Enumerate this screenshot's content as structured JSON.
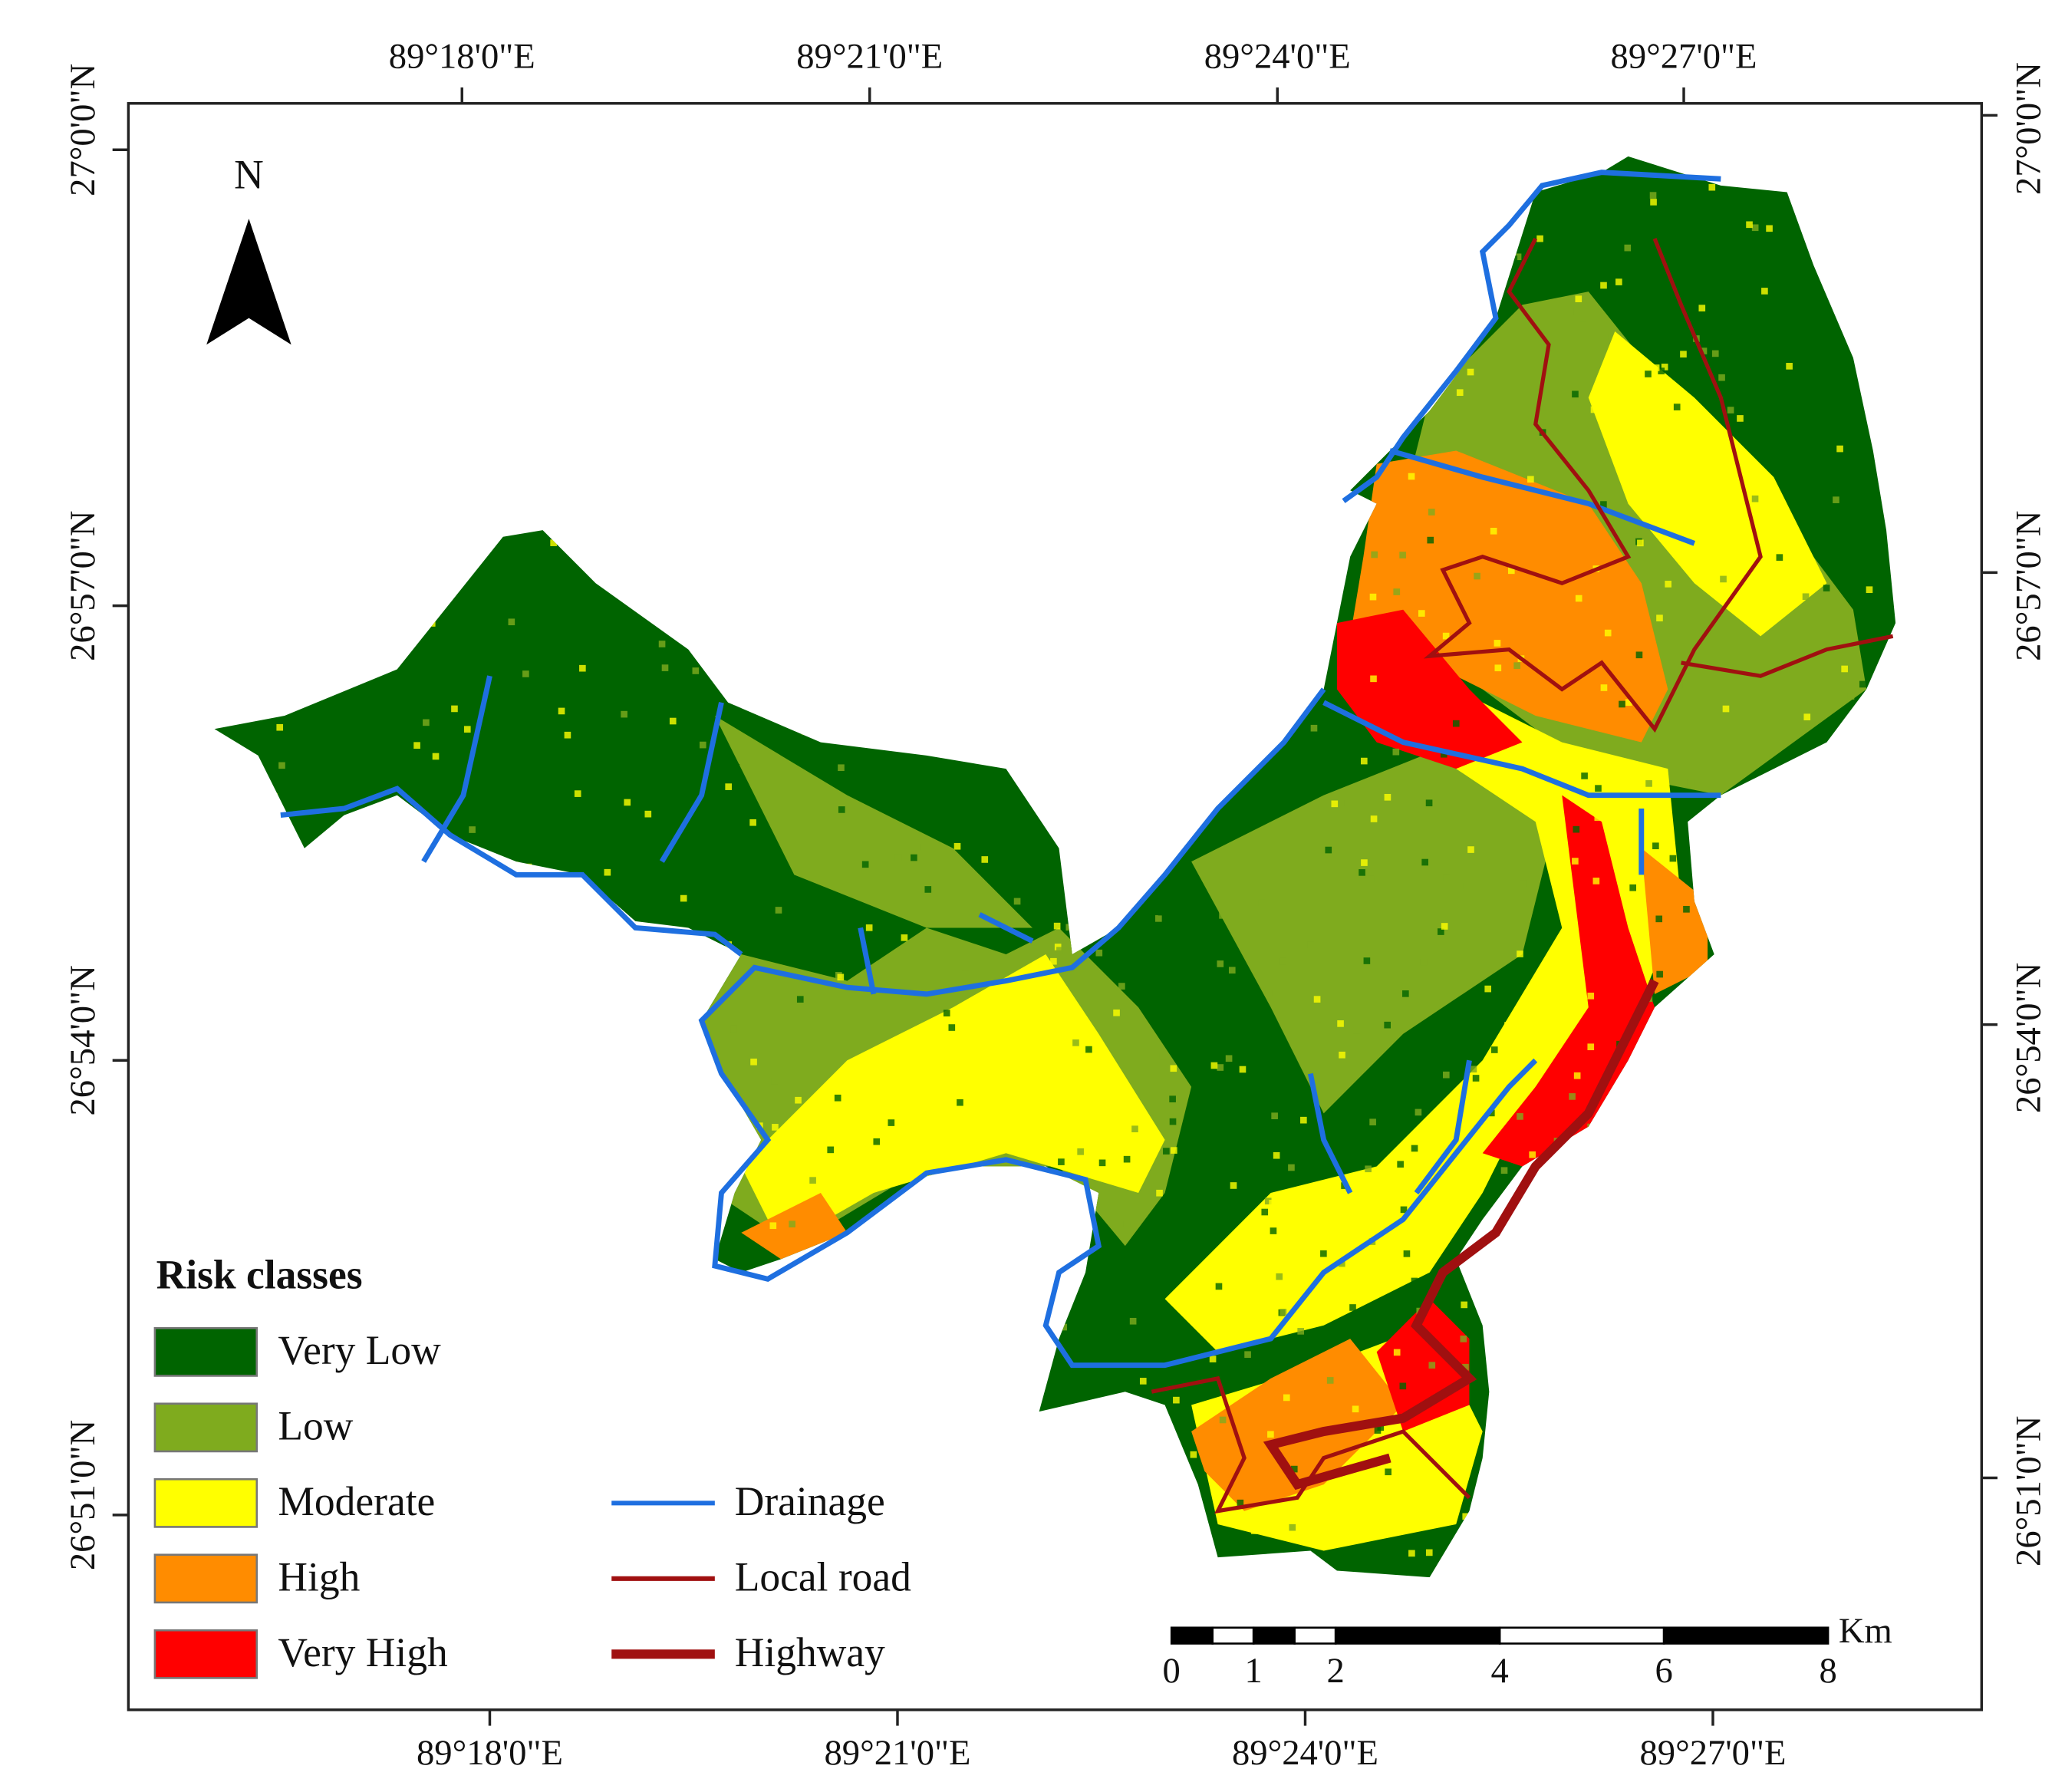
{
  "map": {
    "top_labels": [
      "89°18'0\"E",
      "89°21'0\"E",
      "89°24'0\"E",
      "89°27'0\"E"
    ],
    "bottom_labels": [
      "89°18'0\"E",
      "89°21'0\"E",
      "89°24'0\"E",
      "89°27'0\"E"
    ],
    "left_labels": [
      "27°0'0\"N",
      "26°57'0\"N",
      "26°54'0\"N",
      "26°51'0\"N"
    ],
    "right_labels": [
      "27°0'0\"N",
      "26°57'0\"N",
      "26°54'0\"N",
      "26°51'0\"N"
    ],
    "north": "N",
    "legend": {
      "title": "Risk classes",
      "classes": [
        {
          "label": "Very Low",
          "color": "#006400"
        },
        {
          "label": "Low",
          "color": "#7fab1e"
        },
        {
          "label": "Moderate",
          "color": "#ffff00"
        },
        {
          "label": "High",
          "color": "#ff8c00"
        },
        {
          "label": "Very High",
          "color": "#ff0000"
        }
      ],
      "lines": [
        {
          "label": "Drainage",
          "color": "#1e6fe0"
        },
        {
          "label": "Local road",
          "color": "#a01010"
        },
        {
          "label": "Highway",
          "color": "#a01010"
        }
      ]
    },
    "scale_bar": {
      "unit": "Km",
      "ticks": [
        0,
        1,
        2,
        4,
        6,
        8
      ]
    }
  }
}
